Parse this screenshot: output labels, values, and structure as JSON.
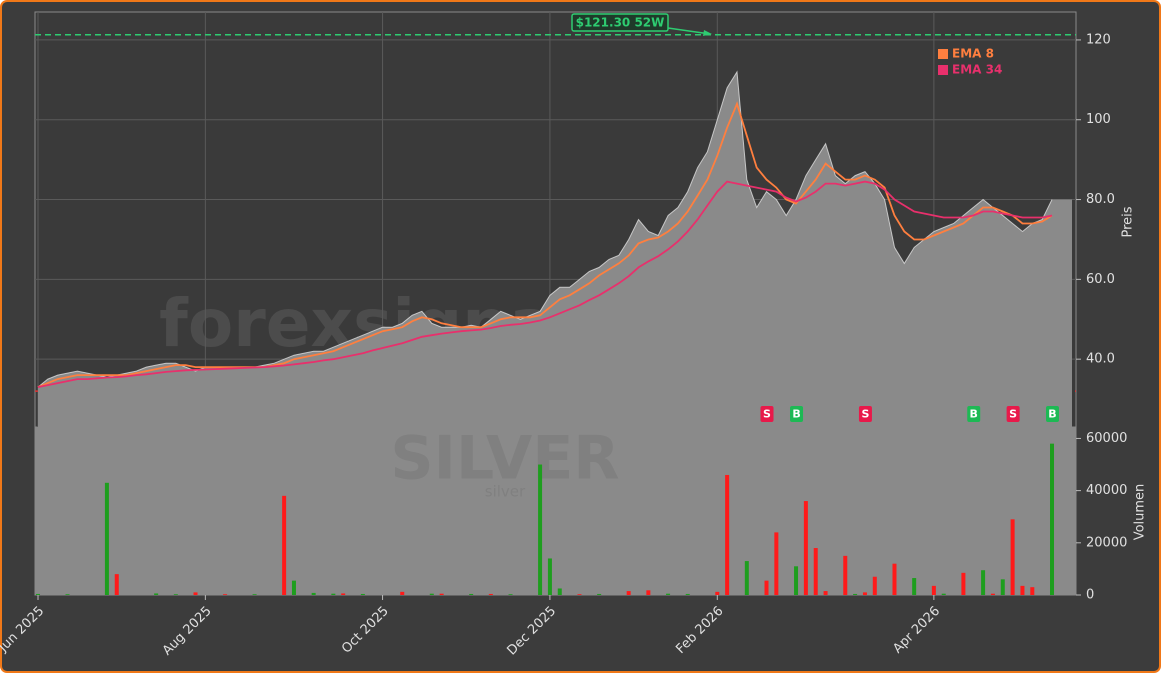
{
  "chart_data": {
    "type": "candle-volume",
    "y_label": "Preis",
    "y2_label": "Volumen",
    "watermark": "forexsignale.trade",
    "symbol": "SILVER",
    "symbol_sub": "silver",
    "categories": [
      "Jun 2025",
      null,
      null,
      null,
      null,
      null,
      null,
      null,
      null,
      null,
      null,
      null,
      null,
      null,
      null,
      null,
      null,
      "Aug 2025",
      null,
      null,
      null,
      null,
      null,
      null,
      null,
      null,
      null,
      null,
      null,
      null,
      null,
      null,
      null,
      null,
      null,
      "Oct 2025",
      null,
      null,
      null,
      null,
      null,
      null,
      null,
      null,
      null,
      null,
      null,
      null,
      null,
      null,
      null,
      null,
      "Dec 2025",
      null,
      null,
      null,
      null,
      null,
      null,
      null,
      null,
      null,
      null,
      null,
      null,
      null,
      null,
      null,
      null,
      "Feb 2026",
      null,
      null,
      null,
      null,
      null,
      null,
      null,
      null,
      null,
      null,
      null,
      null,
      null,
      null,
      null,
      null,
      null,
      null,
      null,
      null,
      null,
      "Apr 2026",
      null,
      null,
      null,
      null,
      null,
      null,
      null,
      null,
      null,
      null,
      null,
      null
    ],
    "series": [
      {
        "name": "Preis",
        "color": "#f0f0f0",
        "fill": "#8a8a8a",
        "values": [
          33,
          35,
          36,
          36.5,
          37,
          36.5,
          36,
          35.5,
          36,
          36.5,
          37,
          38,
          38.5,
          39,
          39,
          38,
          37,
          38,
          38,
          38,
          38,
          38,
          38,
          38.5,
          39,
          40,
          41,
          41.5,
          42,
          42,
          43,
          44,
          45,
          46,
          47,
          48,
          48,
          49,
          51,
          52,
          49,
          48,
          48,
          48,
          48.5,
          48,
          50,
          52,
          51,
          50,
          51,
          52,
          56,
          58,
          58,
          60,
          62,
          63,
          65,
          66,
          70,
          75,
          72,
          71,
          76,
          78,
          82,
          88,
          92,
          100,
          108,
          112,
          85,
          78,
          82,
          80,
          76,
          80,
          86,
          90,
          94,
          86,
          84,
          86,
          87,
          84,
          80,
          68,
          64,
          68,
          70,
          72,
          73,
          74,
          76,
          78,
          80,
          78,
          76,
          74,
          72,
          74,
          75,
          80
        ]
      },
      {
        "name": "EMA 8",
        "color": "#ff7f3f",
        "values": [
          33,
          34,
          35,
          35.5,
          36,
          36,
          36,
          36,
          36,
          36,
          36.5,
          37,
          37.5,
          38,
          38.5,
          38.5,
          38,
          38,
          38,
          38,
          38,
          38,
          38,
          38,
          38.5,
          39,
          40,
          40.5,
          41,
          41.5,
          42,
          43,
          44,
          45,
          46,
          47,
          47.5,
          48,
          49.5,
          50.5,
          50,
          49,
          48.5,
          48,
          48,
          48,
          49,
          50,
          50.5,
          50.5,
          50.5,
          51,
          53,
          55,
          56,
          57.5,
          59,
          61,
          62.5,
          64,
          66,
          69,
          70,
          70.5,
          72,
          74,
          77,
          81,
          85,
          91,
          98,
          104,
          96,
          88,
          85,
          83,
          80,
          79,
          82,
          85,
          89,
          87,
          85,
          85,
          86,
          85,
          83,
          76,
          72,
          70,
          70,
          71,
          72,
          73,
          74,
          76,
          78,
          78,
          77,
          76,
          74,
          74,
          74.5,
          76
        ]
      },
      {
        "name": "EMA 34",
        "color": "#e8306c",
        "values": [
          33,
          33.5,
          34,
          34.5,
          35,
          35,
          35.2,
          35.4,
          35.5,
          35.7,
          36,
          36.2,
          36.5,
          36.8,
          37,
          37.2,
          37.3,
          37.4,
          37.5,
          37.6,
          37.7,
          37.8,
          37.9,
          38,
          38.2,
          38.4,
          38.7,
          39,
          39.3,
          39.7,
          40,
          40.5,
          41,
          41.5,
          42.2,
          42.8,
          43.4,
          44,
          44.8,
          45.6,
          46,
          46.4,
          46.7,
          47,
          47.2,
          47.4,
          47.8,
          48.3,
          48.6,
          48.8,
          49.2,
          49.7,
          50.5,
          51.5,
          52.5,
          53.5,
          54.8,
          56,
          57.5,
          59,
          60.8,
          63,
          64.5,
          65.8,
          67.5,
          69.5,
          72,
          75,
          78.5,
          82,
          84.5,
          84,
          83.5,
          83,
          82.5,
          82,
          80.5,
          79.5,
          80.5,
          82,
          84,
          84,
          83.5,
          84,
          84.5,
          84,
          82.5,
          80,
          78.5,
          77,
          76.5,
          76,
          75.5,
          75.5,
          75.5,
          76,
          77,
          77,
          76.5,
          76,
          75.5,
          75.5,
          75.5,
          76
        ]
      }
    ],
    "volume_series": [
      {
        "color": "#1e9e1e",
        "values": [
          400,
          null,
          null,
          300,
          null,
          null,
          null,
          43000,
          null,
          null,
          null,
          null,
          600,
          null,
          300,
          null,
          null,
          null,
          null,
          null,
          null,
          null,
          300,
          null,
          null,
          null,
          5500,
          null,
          800,
          null,
          500,
          null,
          null,
          400,
          null,
          null,
          null,
          null,
          null,
          null,
          500,
          null,
          null,
          null,
          400,
          null,
          null,
          null,
          300,
          null,
          null,
          50000,
          14000,
          2500,
          null,
          null,
          null,
          400,
          null,
          null,
          null,
          null,
          null,
          null,
          500,
          null,
          400,
          null,
          null,
          null,
          null,
          null,
          13000,
          null,
          null,
          null,
          null,
          11000,
          null,
          null,
          null,
          null,
          null,
          400,
          null,
          null,
          null,
          null,
          null,
          6500,
          null,
          null,
          500,
          null,
          null,
          null,
          9500,
          null,
          6000,
          null,
          null,
          null,
          null,
          58000
        ]
      },
      {
        "color": "#ff1a1a",
        "values": [
          null,
          null,
          null,
          null,
          null,
          null,
          null,
          null,
          8000,
          null,
          null,
          null,
          null,
          null,
          null,
          null,
          1000,
          null,
          null,
          300,
          null,
          null,
          null,
          null,
          null,
          38000,
          null,
          null,
          null,
          null,
          null,
          600,
          null,
          null,
          null,
          null,
          null,
          1200,
          null,
          null,
          null,
          500,
          null,
          null,
          null,
          null,
          400,
          null,
          null,
          null,
          null,
          null,
          null,
          null,
          null,
          300,
          null,
          null,
          null,
          null,
          1500,
          null,
          1800,
          null,
          null,
          null,
          null,
          null,
          null,
          1200,
          46000,
          null,
          null,
          null,
          5500,
          24000,
          null,
          null,
          36000,
          18000,
          1500,
          null,
          15000,
          null,
          1000,
          7000,
          null,
          12000,
          null,
          null,
          null,
          3500,
          null,
          null,
          8500,
          null,
          null,
          500,
          null,
          29000,
          3500,
          3000,
          null,
          null
        ]
      }
    ],
    "signals": [
      null,
      null,
      null,
      null,
      null,
      null,
      null,
      null,
      null,
      null,
      null,
      null,
      null,
      null,
      null,
      null,
      null,
      null,
      null,
      null,
      null,
      null,
      null,
      null,
      null,
      null,
      null,
      null,
      null,
      null,
      null,
      null,
      null,
      null,
      null,
      null,
      null,
      null,
      null,
      null,
      null,
      null,
      null,
      null,
      null,
      null,
      null,
      null,
      null,
      null,
      null,
      null,
      null,
      null,
      null,
      null,
      null,
      null,
      null,
      null,
      null,
      null,
      null,
      null,
      null,
      null,
      null,
      null,
      null,
      null,
      null,
      null,
      null,
      null,
      "S",
      null,
      null,
      "B",
      null,
      null,
      null,
      null,
      null,
      null,
      "S",
      null,
      null,
      null,
      null,
      null,
      null,
      null,
      null,
      null,
      null,
      "B",
      null,
      null,
      null,
      "S",
      null,
      null,
      null,
      "B"
    ],
    "signal_colors": {
      "B": "#1db954",
      "S": "#e8194a"
    },
    "high_line": {
      "label": "$121.30 52W",
      "value": 121.3,
      "color": "#2ecc71"
    },
    "low_line": {
      "value": 32,
      "color": "#e03535"
    },
    "ylim": [
      23,
      127
    ],
    "yticks": [
      {
        "value": 40,
        "label": "40.0"
      },
      {
        "value": 60,
        "label": "60.0"
      },
      {
        "value": 80,
        "label": "80.0"
      },
      100,
      120
    ],
    "y2lim": [
      0,
      64000
    ],
    "y2ticks": [
      0,
      20000,
      40000,
      60000
    ],
    "grid": true,
    "legend": "top-right"
  }
}
